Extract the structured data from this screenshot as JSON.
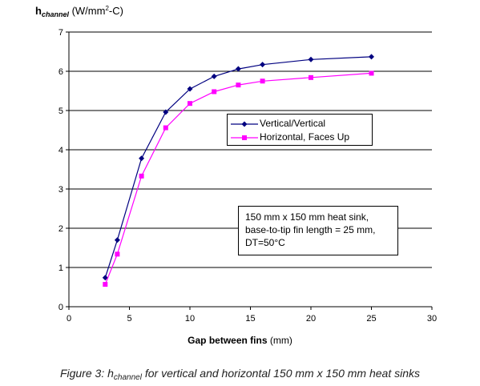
{
  "figure": {
    "caption_prefix": "Figure 3: h",
    "caption_sub": "channel",
    "caption_suffix": " for vertical and horizontal 150 mm x 150 mm heat sinks"
  },
  "chart_data": {
    "type": "line",
    "ylabel_main": "h",
    "ylabel_sub": "channel",
    "ylabel_unit_prefix": " (W/mm",
    "ylabel_unit_sup": "2",
    "ylabel_unit_suffix": "-C)",
    "xlabel_bold": "Gap between fins",
    "xlabel_unit": " (mm)",
    "xlim": [
      0,
      30
    ],
    "ylim": [
      0,
      7
    ],
    "x_ticks": [
      "0",
      "5",
      "10",
      "15",
      "20",
      "25",
      "30"
    ],
    "y_ticks": [
      "0",
      "1",
      "2",
      "3",
      "4",
      "5",
      "6",
      "7"
    ],
    "grid": "horizontal",
    "legend_position": "center-right",
    "series": [
      {
        "name": "Vertical/Vertical",
        "color": "#000080",
        "marker": "diamond",
        "x": [
          3,
          4,
          6,
          8,
          10,
          12,
          14,
          16,
          20,
          25
        ],
        "y": [
          0.74,
          1.7,
          3.78,
          4.96,
          5.55,
          5.87,
          6.06,
          6.17,
          6.3,
          6.37
        ]
      },
      {
        "name": "Horizontal, Faces Up",
        "color": "#ff00ff",
        "marker": "square",
        "x": [
          3,
          4,
          6,
          8,
          10,
          12,
          14,
          16,
          20,
          25
        ],
        "y": [
          0.57,
          1.34,
          3.33,
          4.56,
          5.18,
          5.48,
          5.65,
          5.75,
          5.84,
          5.95
        ]
      }
    ],
    "annotation_lines": [
      "150 mm x 150 mm heat sink,",
      "base-to-tip fin length = 25 mm,",
      "DT=50°C"
    ]
  }
}
